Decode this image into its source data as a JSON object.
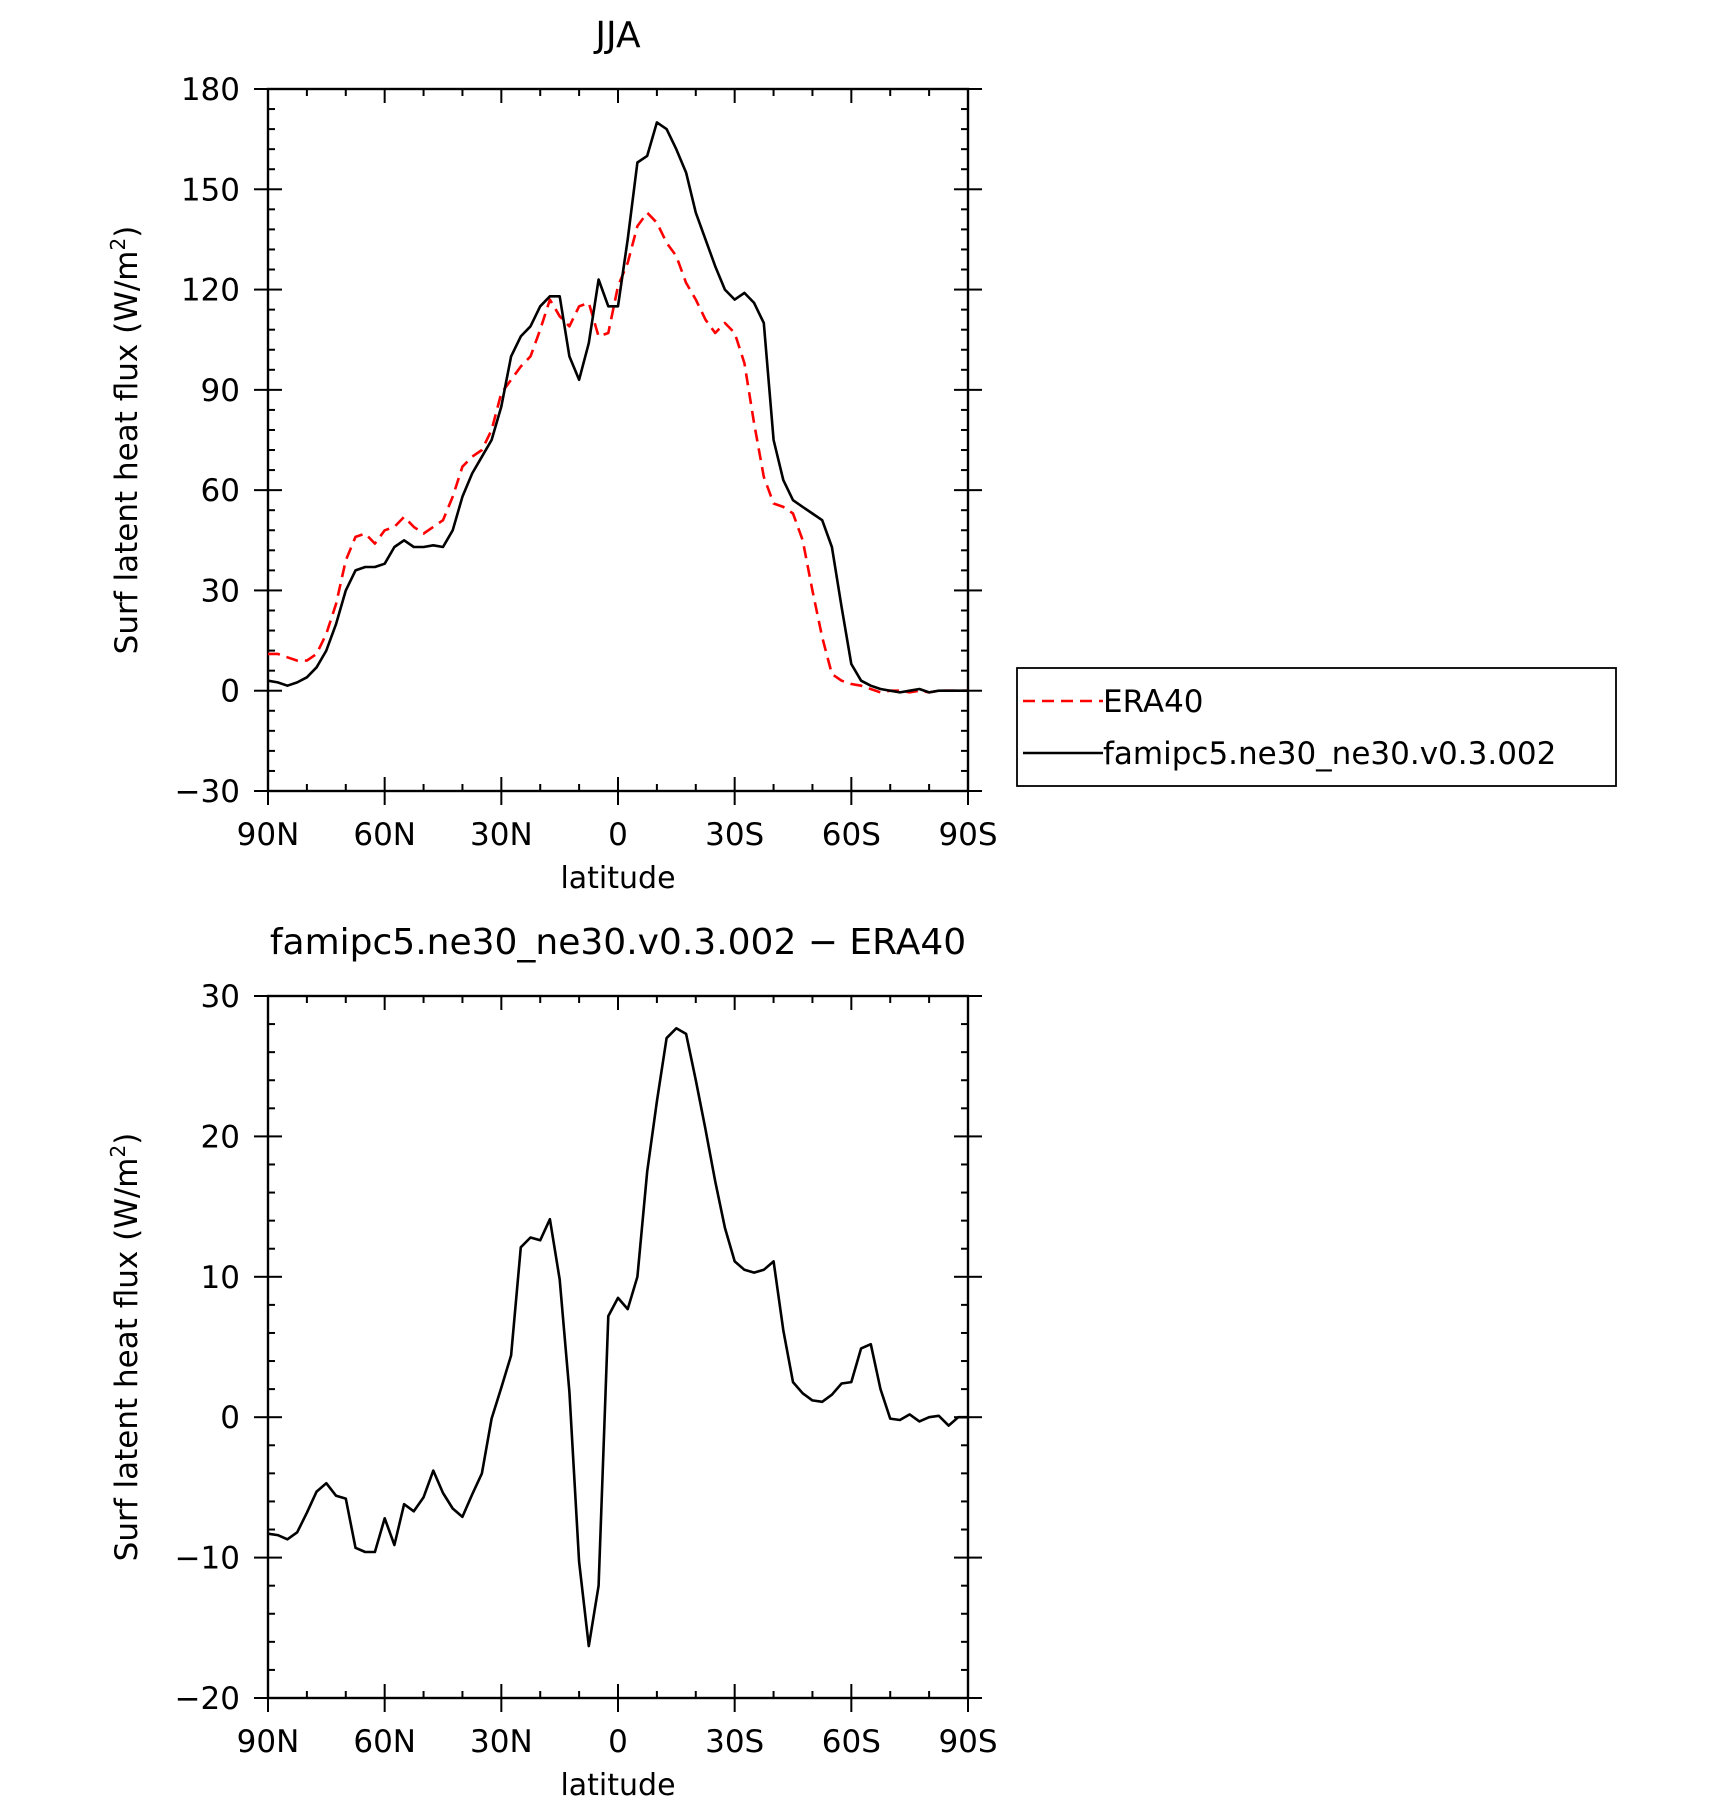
{
  "chart_data": [
    {
      "type": "line",
      "title": "JJA",
      "xlabel": "latitude",
      "ylabel": "Surf latent heat flux (W/m",
      "ylabel_sup": "2",
      "ylabel_close": ")",
      "xlim": [
        90,
        -90
      ],
      "ylim": [
        -30,
        180
      ],
      "xticks": [
        {
          "value": 90,
          "label": "90N"
        },
        {
          "value": 60,
          "label": "60N"
        },
        {
          "value": 30,
          "label": "30N"
        },
        {
          "value": 0,
          "label": "0"
        },
        {
          "value": -30,
          "label": "30S"
        },
        {
          "value": -60,
          "label": "60S"
        },
        {
          "value": -90,
          "label": "90S"
        }
      ],
      "yticks": [
        {
          "value": 180,
          "label": "180"
        },
        {
          "value": 150,
          "label": "150"
        },
        {
          "value": 120,
          "label": "120"
        },
        {
          "value": 90,
          "label": "90"
        },
        {
          "value": 60,
          "label": "60"
        },
        {
          "value": 30,
          "label": "30"
        },
        {
          "value": 0,
          "label": "0"
        },
        {
          "value": -30,
          "label": "−30"
        }
      ],
      "legend_position": "right",
      "series": [
        {
          "name": "ERA40",
          "color": "#ff0000",
          "style": "dashed",
          "x": [
            90,
            87.5,
            85,
            82.5,
            80,
            77.5,
            75,
            72.5,
            70,
            67.5,
            65,
            62.5,
            60,
            57.5,
            55,
            52.5,
            50,
            47.5,
            45,
            42.5,
            40,
            37.5,
            35,
            32.5,
            30,
            27.5,
            25,
            22.5,
            20,
            17.5,
            15,
            12.5,
            10,
            7.5,
            5,
            2.5,
            0,
            -2.5,
            -5,
            -7.5,
            -10,
            -12.5,
            -15,
            -17.5,
            -20,
            -22.5,
            -25,
            -27.5,
            -30,
            -32.5,
            -35,
            -37.5,
            -40,
            -42.5,
            -45,
            -47.5,
            -50,
            -52.5,
            -55,
            -57.5,
            -60,
            -62.5,
            -65,
            -67.5,
            -70,
            -72.5,
            -75,
            -77.5,
            -80,
            -82.5,
            -85,
            -87.5,
            -90
          ],
          "y": [
            11,
            11,
            10,
            9,
            9,
            11,
            17,
            26,
            39,
            46,
            47,
            44,
            48,
            49,
            52,
            49,
            47,
            49,
            51,
            58,
            67,
            70,
            72,
            78,
            89,
            93,
            97,
            100,
            108,
            117,
            112,
            109,
            115,
            116,
            106,
            107,
            121,
            128,
            139,
            143,
            140,
            134,
            130,
            122,
            117,
            111,
            107,
            110,
            107,
            98,
            80,
            64,
            56,
            55,
            53,
            45,
            30,
            16,
            5,
            3,
            2,
            1.5,
            0.5,
            -0.5,
            0,
            0,
            -0.5,
            0,
            -0.5,
            0,
            0,
            0,
            0
          ]
        },
        {
          "name": "famipc5.ne30_ne30.v0.3.002",
          "color": "#000000",
          "style": "solid",
          "x": [
            90,
            87.5,
            85,
            82.5,
            80,
            77.5,
            75,
            72.5,
            70,
            67.5,
            65,
            62.5,
            60,
            57.5,
            55,
            52.5,
            50,
            47.5,
            45,
            42.5,
            40,
            37.5,
            35,
            32.5,
            30,
            27.5,
            25,
            22.5,
            20,
            17.5,
            15,
            12.5,
            10,
            7.5,
            5,
            2.5,
            0,
            -2.5,
            -5,
            -7.5,
            -10,
            -12.5,
            -15,
            -17.5,
            -20,
            -22.5,
            -25,
            -27.5,
            -30,
            -32.5,
            -35,
            -37.5,
            -40,
            -42.5,
            -45,
            -47.5,
            -50,
            -52.5,
            -55,
            -57.5,
            -60,
            -62.5,
            -65,
            -67.5,
            -70,
            -72.5,
            -75,
            -77.5,
            -80,
            -82.5,
            -85,
            -87.5,
            -90
          ],
          "y": [
            3,
            2.5,
            1.5,
            2.5,
            4,
            7,
            12,
            20,
            30,
            36,
            37,
            37,
            38,
            43,
            45,
            43,
            43,
            43.5,
            43,
            48,
            58,
            65,
            70,
            75,
            85,
            100,
            106,
            109,
            115,
            118,
            118,
            100,
            93,
            104,
            123,
            115,
            115,
            135,
            158,
            160,
            170,
            168,
            162,
            155,
            143,
            135,
            127,
            120,
            117,
            119,
            116,
            110,
            75,
            63,
            57,
            55,
            53,
            51,
            43,
            25,
            8,
            3,
            1.5,
            0.5,
            0,
            -0.5,
            0,
            0.5,
            -0.5,
            0,
            0,
            0,
            0
          ]
        }
      ]
    },
    {
      "type": "line",
      "title": "famipc5.ne30_ne30.v0.3.002 − ERA40",
      "xlabel": "latitude",
      "ylabel": "Surf latent heat flux (W/m",
      "ylabel_sup": "2",
      "ylabel_close": ")",
      "xlim": [
        90,
        -90
      ],
      "ylim": [
        -20,
        30
      ],
      "xticks": [
        {
          "value": 90,
          "label": "90N"
        },
        {
          "value": 60,
          "label": "60N"
        },
        {
          "value": 30,
          "label": "30N"
        },
        {
          "value": 0,
          "label": "0"
        },
        {
          "value": -30,
          "label": "30S"
        },
        {
          "value": -60,
          "label": "60S"
        },
        {
          "value": -90,
          "label": "90S"
        }
      ],
      "yticks": [
        {
          "value": 30,
          "label": "30"
        },
        {
          "value": 20,
          "label": "20"
        },
        {
          "value": 10,
          "label": "10"
        },
        {
          "value": 0,
          "label": "0"
        },
        {
          "value": -10,
          "label": "−10"
        },
        {
          "value": -20,
          "label": "−20"
        }
      ],
      "series": [
        {
          "color": "#000000",
          "style": "solid",
          "x": [
            90,
            87.5,
            85,
            82.5,
            80,
            77.5,
            75,
            72.5,
            70,
            67.5,
            65,
            62.5,
            60,
            57.5,
            55,
            52.5,
            50,
            47.5,
            45,
            42.5,
            40,
            37.5,
            35,
            32.5,
            30,
            27.5,
            25,
            22.5,
            20,
            17.5,
            15,
            12.5,
            10,
            7.5,
            5,
            2.5,
            0,
            -2.5,
            -5,
            -7.5,
            -10,
            -12.5,
            -15,
            -17.5,
            -20,
            -22.5,
            -25,
            -27.5,
            -30,
            -32.5,
            -35,
            -37.5,
            -40,
            -42.5,
            -45,
            -47.5,
            -50,
            -52.5,
            -55,
            -57.5,
            -60,
            -62.5,
            -65,
            -67.5,
            -70,
            -72.5,
            -75,
            -77.5,
            -80,
            -82.5,
            -85,
            -87.5,
            -90
          ],
          "y": [
            -8.3,
            -8.4,
            -8.7,
            -8.2,
            -6.8,
            -5.3,
            -4.7,
            -5.6,
            -5.8,
            -9.3,
            -9.6,
            -9.6,
            -7.2,
            -9.1,
            -6.2,
            -6.7,
            -5.7,
            -3.8,
            -5.4,
            -6.5,
            -7.1,
            -5.5,
            -4.0,
            -0.1,
            2.1,
            4.4,
            12.1,
            12.8,
            12.6,
            14.1,
            9.8,
            1.8,
            -10.3,
            -16.3,
            -12.0,
            7.2,
            8.5,
            7.7,
            10.0,
            17.5,
            22.5,
            27.0,
            27.7,
            27.3,
            24.0,
            20.5,
            16.8,
            13.5,
            11.1,
            10.5,
            10.3,
            10.5,
            11.1,
            6.2,
            2.5,
            1.7,
            1.2,
            1.1,
            1.6,
            2.4,
            2.5,
            4.9,
            5.2,
            2.0,
            -0.1,
            -0.2,
            0.2,
            -0.3,
            0,
            0.1,
            -0.6,
            0,
            0
          ]
        }
      ]
    }
  ]
}
